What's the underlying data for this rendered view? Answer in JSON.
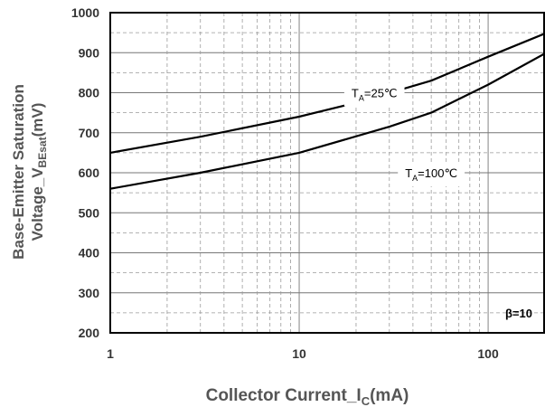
{
  "chart_data": {
    "type": "line",
    "title": "",
    "xlabel": {
      "main": "Collector Current_I",
      "sub": "C",
      "unit": "(mA)"
    },
    "ylabel": {
      "line1": "Base-Emitter Saturation",
      "line2_main": "Voltage_V",
      "line2_sub": "BEsat",
      "line2_unit": "(mV)"
    },
    "xscale": "log",
    "xlim": [
      1,
      200
    ],
    "ylim": [
      200,
      1000
    ],
    "xticks": [
      {
        "value": 1,
        "label": "1"
      },
      {
        "value": 10,
        "label": "10"
      },
      {
        "value": 100,
        "label": "100"
      }
    ],
    "yticks": [
      {
        "value": 200,
        "label": "200"
      },
      {
        "value": 300,
        "label": "300"
      },
      {
        "value": 400,
        "label": "400"
      },
      {
        "value": 500,
        "label": "500"
      },
      {
        "value": 600,
        "label": "600"
      },
      {
        "value": 700,
        "label": "700"
      },
      {
        "value": 800,
        "label": "800"
      },
      {
        "value": 900,
        "label": "900"
      },
      {
        "value": 1000,
        "label": "1000"
      }
    ],
    "grid": true,
    "series": [
      {
        "name": "TA=25℃",
        "color": "#000000",
        "points": [
          [
            1,
            650
          ],
          [
            3,
            690
          ],
          [
            10,
            740
          ],
          [
            20,
            775
          ],
          [
            50,
            830
          ],
          [
            100,
            890
          ],
          [
            200,
            948
          ]
        ]
      },
      {
        "name": "TA=100℃",
        "color": "#000000",
        "points": [
          [
            1,
            560
          ],
          [
            3,
            600
          ],
          [
            10,
            650
          ],
          [
            30,
            715
          ],
          [
            50,
            750
          ],
          [
            100,
            820
          ],
          [
            200,
            898
          ]
        ]
      }
    ],
    "annotations": [
      {
        "main": "T",
        "sub": "A",
        "rest": "=25℃",
        "x": 25,
        "y": 800
      },
      {
        "main": "T",
        "sub": "A",
        "rest": "=100℃",
        "x": 50,
        "y": 600
      }
    ],
    "note": "β=10"
  }
}
